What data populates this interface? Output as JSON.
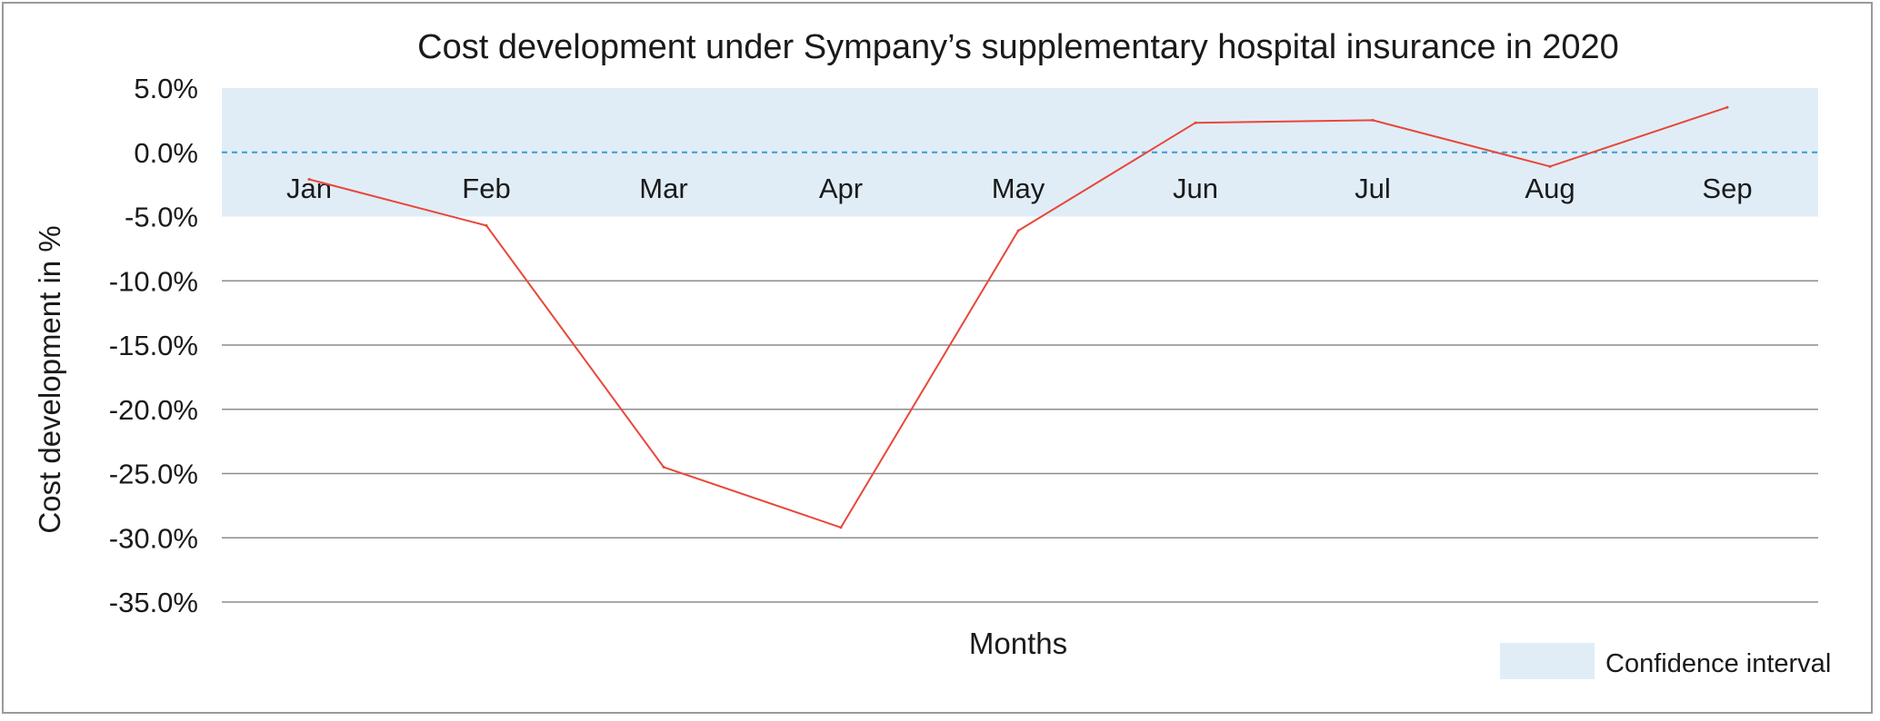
{
  "chart_data": {
    "type": "line",
    "title": "Cost development under Sympany’s supplementary hospital insurance in 2020",
    "xlabel": "Months",
    "ylabel": "Cost development in %",
    "categories": [
      "Jan",
      "Feb",
      "Mar",
      "Apr",
      "May",
      "Jun",
      "Jul",
      "Aug",
      "Sep"
    ],
    "series": [
      {
        "values": [
          -2.1,
          -5.7,
          -24.5,
          -29.2,
          -6.1,
          2.3,
          2.5,
          -1.1,
          3.5
        ],
        "color": "#e8473b"
      }
    ],
    "y_ticks": [
      "5.0%",
      "0.0%",
      "-5.0%",
      "-10.0%",
      "-15.0%",
      "-20.0%",
      "-25.0%",
      "-30.0%",
      "-35.0%"
    ],
    "ylim": [
      -35,
      5
    ],
    "y_tick_values": [
      5,
      0,
      -5,
      -10,
      -15,
      -20,
      -25,
      -30,
      -35
    ],
    "grid": true,
    "gridline_color": "#8c8c8c",
    "confidence_interval": {
      "label": "Confidence interval",
      "range": [
        -5,
        5
      ],
      "color": "#e0edf7"
    },
    "zero_line": {
      "style": "dashed",
      "color": "#3a9bd0"
    },
    "legend": {
      "position": "bottom-right"
    }
  }
}
